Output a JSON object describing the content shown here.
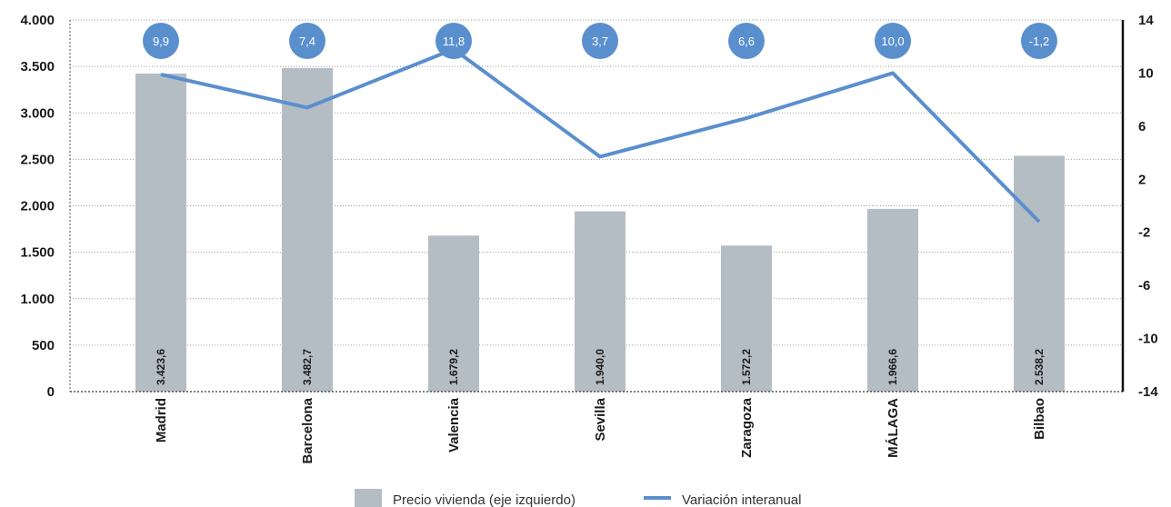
{
  "chart_data": {
    "type": "bar",
    "categories": [
      "Madrid",
      "Barcelona",
      "Valencia",
      "Sevilla",
      "Zaragoza",
      "MÁLAGA",
      "Bilbao"
    ],
    "series": [
      {
        "name": "Precio vivienda (eje izquierdo)",
        "type": "bar",
        "axis": "left",
        "values": [
          3423.6,
          3482.7,
          1679.2,
          1940.0,
          1572.2,
          1966.6,
          2538.2
        ],
        "labels": [
          "3.423,6",
          "3.482,7",
          "1.679,2",
          "1.940,0",
          "1.572,2",
          "1.966,6",
          "2.538,2"
        ],
        "color": "#b5bdc4"
      },
      {
        "name": "Variación interanual",
        "type": "line",
        "axis": "right",
        "values": [
          9.9,
          7.4,
          11.8,
          3.7,
          6.6,
          10.0,
          -1.2
        ],
        "labels": [
          "9,9",
          "7,4",
          "11,8",
          "3,7",
          "6,6",
          "10,0",
          "-1,2"
        ],
        "color": "#5a8fce"
      }
    ],
    "left_axis": {
      "ylim": [
        0,
        4000
      ],
      "ticks": [
        0,
        500,
        1000,
        1500,
        2000,
        2500,
        3000,
        3500,
        4000
      ],
      "tick_labels": [
        "0",
        "500",
        "1.000",
        "1.500",
        "2.000",
        "2.500",
        "3.000",
        "3.500",
        "4.000"
      ]
    },
    "right_axis": {
      "ylim": [
        -14,
        14
      ],
      "ticks": [
        -14,
        -10,
        -6,
        -2,
        2,
        6,
        10,
        14
      ],
      "tick_labels": [
        "-14",
        "-10",
        "-6",
        "-2",
        "2",
        "6",
        "10",
        "14"
      ]
    },
    "grid": true,
    "legend_position": "bottom"
  }
}
